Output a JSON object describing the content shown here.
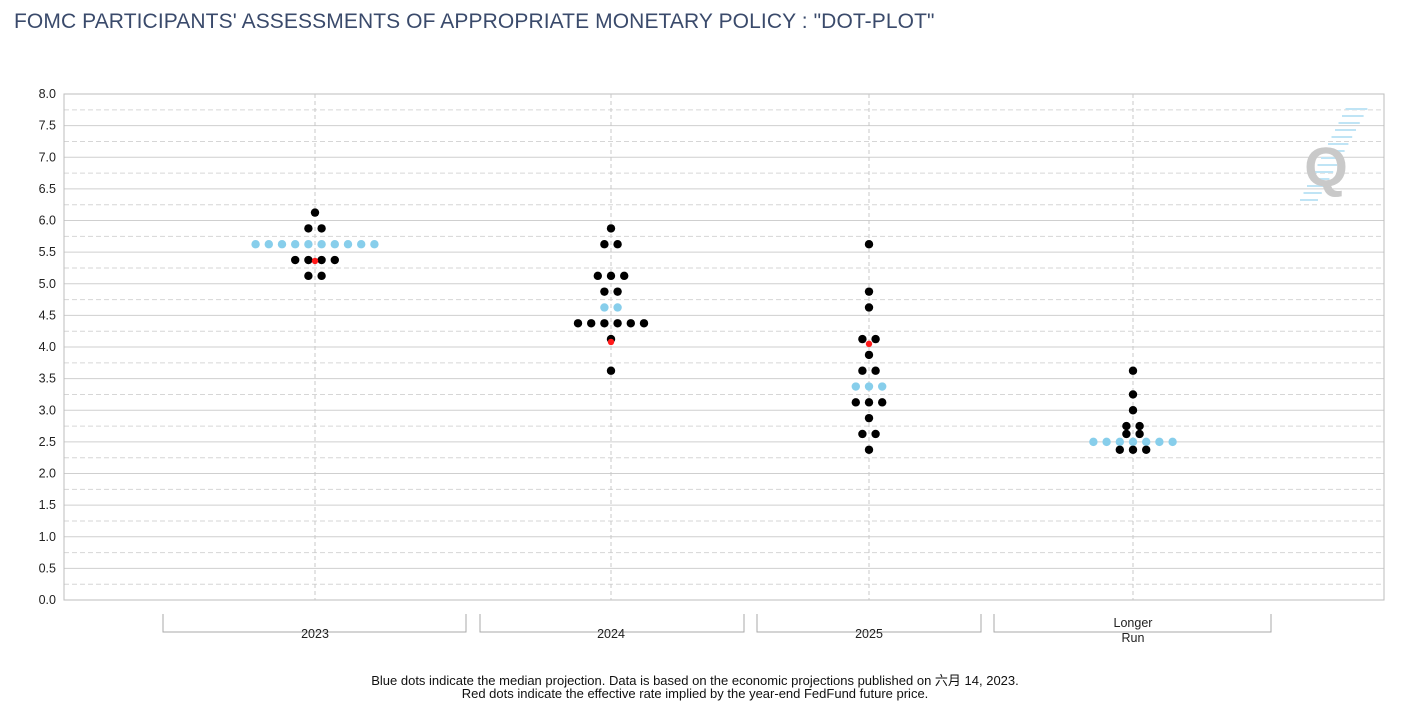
{
  "chart_data": {
    "type": "scatter",
    "title": "FOMC PARTICIPANTS' ASSESSMENTS OF APPROPRIATE MONETARY POLICY : \"DOT-PLOT\"",
    "xlabel": "",
    "ylabel": "",
    "ylim": [
      0,
      8
    ],
    "yticks": [
      "0.0",
      "0.5",
      "1.0",
      "1.5",
      "2.0",
      "2.5",
      "3.0",
      "3.5",
      "4.0",
      "4.5",
      "5.0",
      "5.5",
      "6.0",
      "6.5",
      "7.0",
      "7.5",
      "8.0"
    ],
    "grid": true,
    "categories": [
      {
        "label": "2023",
        "label_lines": [
          "2023"
        ],
        "dots": [
          {
            "rate": 6.125,
            "count": 1
          },
          {
            "rate": 5.875,
            "count": 2
          },
          {
            "rate": 5.625,
            "count": 10,
            "median": true
          },
          {
            "rate": 5.375,
            "count": 4
          },
          {
            "rate": 5.125,
            "count": 2
          }
        ],
        "futures_rate": 5.36
      },
      {
        "label": "2024",
        "label_lines": [
          "2024"
        ],
        "dots": [
          {
            "rate": 5.875,
            "count": 1
          },
          {
            "rate": 5.625,
            "count": 2
          },
          {
            "rate": 5.125,
            "count": 3
          },
          {
            "rate": 4.875,
            "count": 2
          },
          {
            "rate": 4.625,
            "count": 2,
            "median": true
          },
          {
            "rate": 4.375,
            "count": 6
          },
          {
            "rate": 4.125,
            "count": 1
          },
          {
            "rate": 3.625,
            "count": 1
          }
        ],
        "futures_rate": 4.08
      },
      {
        "label": "2025",
        "label_lines": [
          "2025"
        ],
        "dots": [
          {
            "rate": 5.625,
            "count": 1
          },
          {
            "rate": 4.875,
            "count": 1
          },
          {
            "rate": 4.625,
            "count": 1
          },
          {
            "rate": 4.125,
            "count": 2
          },
          {
            "rate": 3.875,
            "count": 1
          },
          {
            "rate": 3.625,
            "count": 2
          },
          {
            "rate": 3.375,
            "count": 3,
            "median": true
          },
          {
            "rate": 3.125,
            "count": 3
          },
          {
            "rate": 2.875,
            "count": 1
          },
          {
            "rate": 2.625,
            "count": 2
          },
          {
            "rate": 2.375,
            "count": 1
          }
        ],
        "futures_rate": 4.05
      },
      {
        "label": "Longer Run",
        "label_lines": [
          "Longer",
          "Run"
        ],
        "dots": [
          {
            "rate": 3.625,
            "count": 1
          },
          {
            "rate": 3.25,
            "count": 1
          },
          {
            "rate": 3.0,
            "count": 1
          },
          {
            "rate": 2.75,
            "count": 2
          },
          {
            "rate": 2.625,
            "count": 2
          },
          {
            "rate": 2.5,
            "count": 7,
            "median": true
          },
          {
            "rate": 2.375,
            "count": 3
          }
        ],
        "futures_rate": null
      }
    ],
    "colors": {
      "dot": "#000000",
      "median": "#87ceeb",
      "futures": "#ff1a1a"
    },
    "logo": "Q"
  },
  "footnotes": [
    "Blue dots indicate the median projection. Data is based on the economic projections published on 六月 14, 2023.",
    "Red dots indicate the effective rate implied by the year-end FedFund future price."
  ]
}
